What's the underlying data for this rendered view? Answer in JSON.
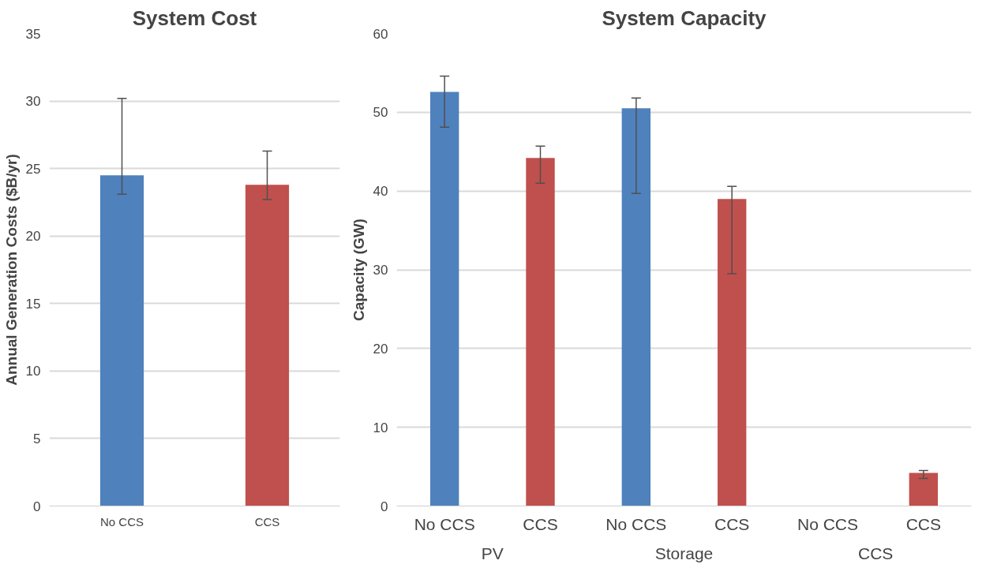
{
  "chart_data": [
    {
      "type": "bar",
      "title": "System Cost",
      "ylabel": "Annual Generation Costs ($B/yr)",
      "categories": [
        "No CCS",
        "CCS"
      ],
      "values": [
        24.5,
        23.8
      ],
      "colors": [
        "#4f81bd",
        "#c0504d"
      ],
      "errors": [
        [
          23.1,
          30.2
        ],
        [
          22.7,
          26.3
        ]
      ],
      "ylim": [
        0,
        35
      ],
      "yticks": [
        0,
        5,
        10,
        15,
        20,
        25,
        30,
        35
      ],
      "grid": "y"
    },
    {
      "type": "bar",
      "title": "System Capacity",
      "ylabel": "Capacity (GW)",
      "categories": [
        "No CCS",
        "CCS",
        "No CCS",
        "CCS",
        "No CCS",
        "CCS"
      ],
      "values": [
        52.6,
        44.2,
        50.5,
        39.0,
        0,
        4.2
      ],
      "colors": [
        "#4f81bd",
        "#c0504d",
        "#4f81bd",
        "#c0504d",
        "#4f81bd",
        "#c0504d"
      ],
      "errors": [
        [
          48.1,
          54.6
        ],
        [
          41.0,
          45.7
        ],
        [
          39.7,
          51.8
        ],
        [
          29.5,
          40.6
        ],
        null,
        [
          3.5,
          4.5
        ]
      ],
      "annotations": [
        "PV",
        "Storage",
        "CCS"
      ],
      "ylim": [
        0,
        60
      ],
      "yticks": [
        0,
        10,
        20,
        30,
        40,
        50,
        60
      ],
      "grid": "y"
    }
  ]
}
